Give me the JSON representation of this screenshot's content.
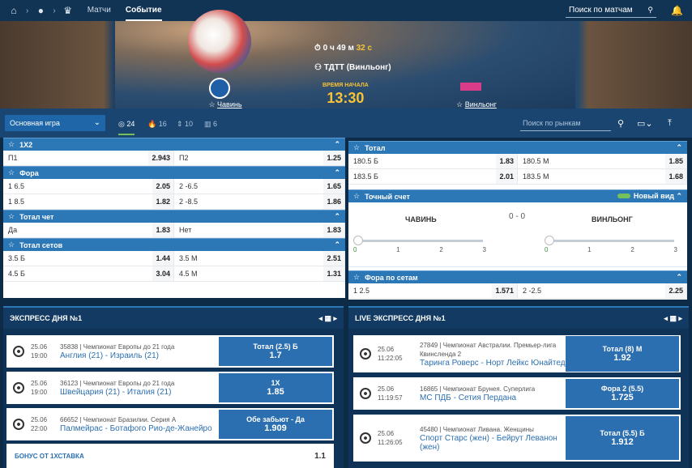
{
  "topbar": {
    "nav": [
      "Матчи",
      "Событие"
    ],
    "search_placeholder": "Поиск по матчам"
  },
  "hero": {
    "timer_h": "0",
    "timer_h_unit": "ч",
    "timer_m": "49",
    "timer_m_unit": "м",
    "timer_s": "32",
    "timer_s_unit": "с",
    "league": "ТДТТ (Винльонг)",
    "team1": "Чавинь",
    "team2": "Винльонг",
    "start_label": "ВРЕМЯ НАЧАЛА",
    "start_time": "13:30"
  },
  "toolbar": {
    "select_value": "Основная игра",
    "stats": [
      "24",
      "16",
      "10",
      "6"
    ],
    "search_placeholder": "Поиск по рынкам"
  },
  "left_markets": [
    {
      "title": "1X2",
      "rows": [
        [
          [
            "П1",
            "2.943"
          ],
          [
            "П2",
            "1.25"
          ]
        ]
      ]
    },
    {
      "title": "Фора",
      "rows": [
        [
          [
            "1 6.5",
            "2.05"
          ],
          [
            "2 -6.5",
            "1.65"
          ]
        ],
        [
          [
            "1 8.5",
            "1.82"
          ],
          [
            "2 -8.5",
            "1.86"
          ]
        ]
      ]
    },
    {
      "title": "Тотал чет",
      "rows": [
        [
          [
            "Да",
            "1.83"
          ],
          [
            "Нет",
            "1.83"
          ]
        ]
      ]
    },
    {
      "title": "Тотал сетов",
      "rows": [
        [
          [
            "3.5 Б",
            "1.44"
          ],
          [
            "3.5 М",
            "2.51"
          ]
        ],
        [
          [
            "4.5 Б",
            "3.04"
          ],
          [
            "4.5 М",
            "1.31"
          ]
        ]
      ]
    }
  ],
  "right_markets": {
    "total": {
      "title": "Тотал",
      "rows": [
        [
          [
            "180.5 Б",
            "1.83"
          ],
          [
            "180.5 М",
            "1.85"
          ]
        ],
        [
          [
            "183.5 Б",
            "2.01"
          ],
          [
            "183.5 М",
            "1.68"
          ]
        ]
      ]
    },
    "correct_score": {
      "title": "Точный счет",
      "new_view": "Новый вид",
      "team1": "ЧАВИНЬ",
      "team2": "ВИНЛЬОНГ",
      "score": "0 - 0",
      "ticks": [
        "0",
        "1",
        "2",
        "3"
      ]
    },
    "set_handicap": {
      "title": "Фора по сетам",
      "rows": [
        [
          [
            "1 2.5",
            "1.571"
          ],
          [
            "2 -2.5",
            "2.25"
          ]
        ]
      ]
    }
  },
  "express": {
    "title": "ЭКСПРЕСС ДНЯ №1",
    "rows": [
      {
        "date": "25.06",
        "time": "19:00",
        "league": "35838 | Чемпионат Европы до 21 года",
        "match": "Англия (21) - Израиль (21)",
        "bet": "Тотал (2.5) Б",
        "odd": "1.7"
      },
      {
        "date": "25.06",
        "time": "19:00",
        "league": "36123 | Чемпионат Европы до 21 года",
        "match": "Швейцария (21) - Италия (21)",
        "bet": "1X",
        "odd": "1.85"
      },
      {
        "date": "25.06",
        "time": "22:00",
        "league": "66652 | Чемпионат Бразилии. Серия А",
        "match": "Палмейрас - Ботафого Рио-де-Жанейро",
        "bet": "Обе забьют - Да",
        "odd": "1.909"
      }
    ],
    "bonus_label": "БОНУС ОТ 1ХСТАВКА",
    "bonus_value": "1.1"
  },
  "live_express": {
    "title": "LIVE ЭКСПРЕСС ДНЯ №1",
    "rows": [
      {
        "date": "25.06",
        "time": "11:22:05",
        "league": "27849 | Чемпионат Австралии. Премьер-лига Квинсленда 2",
        "match": "Таринга Роверс - Норт Лейкс Юнайтед",
        "bet": "Тотал (8) М",
        "odd": "1.92"
      },
      {
        "date": "25.06",
        "time": "11:19:57",
        "league": "16865 | Чемпионат Брунея. Суперлига",
        "match": "МС ПДБ - Сетия Пердана",
        "bet": "Фора 2 (5.5)",
        "odd": "1.725"
      },
      {
        "date": "25.06",
        "time": "11:26:05",
        "league": "45480 | Чемпионат Ливана. Женщины",
        "match": "Спорт Старс (жен) - Бейрут Леванон (жен)",
        "bet": "Тотал (5.5) Б",
        "odd": "1.912"
      }
    ]
  }
}
